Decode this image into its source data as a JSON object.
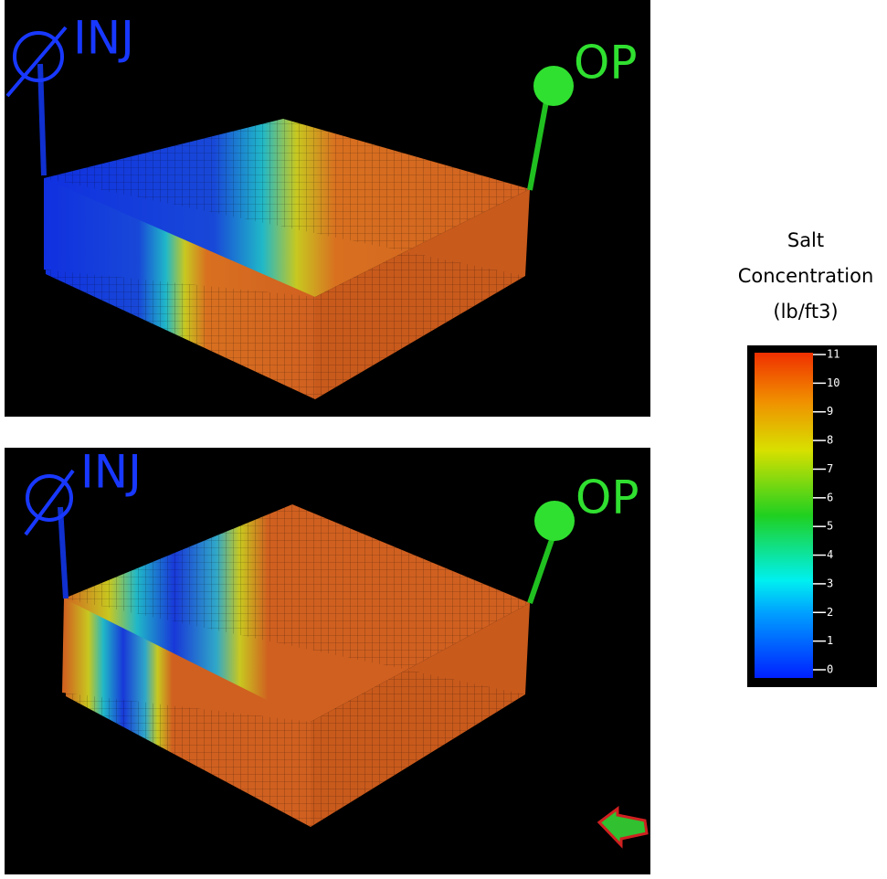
{
  "panels": [
    {
      "injector": "INJ",
      "producer": "OP"
    },
    {
      "injector": "INJ",
      "producer": "OP"
    }
  ],
  "colorbar": {
    "title": [
      "Salt",
      "Concentration",
      "(lb/ft3)"
    ],
    "range": [
      0,
      11
    ],
    "ticks": [
      0,
      1,
      2,
      3,
      4,
      5,
      6,
      7,
      8,
      9,
      10,
      11
    ]
  }
}
